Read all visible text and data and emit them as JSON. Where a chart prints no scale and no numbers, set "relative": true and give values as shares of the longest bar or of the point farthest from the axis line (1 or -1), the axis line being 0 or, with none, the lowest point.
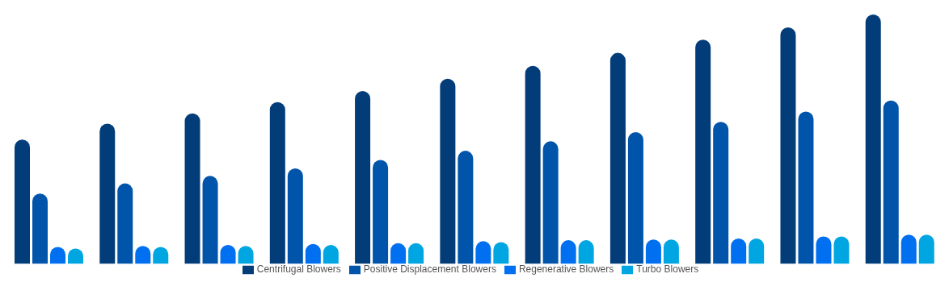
{
  "chart_data": {
    "type": "bar",
    "relative": true,
    "categories": [
      null,
      null,
      null,
      null,
      null,
      null,
      null,
      null,
      null,
      null,
      null
    ],
    "legend": "bottom",
    "series": [
      {
        "name": "Centrifugal Blowers",
        "color": "#023d7a",
        "values": [
          0.498,
          0.562,
          0.603,
          0.648,
          0.693,
          0.742,
          0.794,
          0.846,
          0.899,
          0.948,
          1
        ]
      },
      {
        "name": "Positive Displacement Blowers",
        "color": "#0055aa",
        "values": [
          0.281,
          0.322,
          0.352,
          0.382,
          0.416,
          0.453,
          0.491,
          0.528,
          0.569,
          0.61,
          0.655
        ]
      },
      {
        "name": "Regenerative Blowers",
        "color": "#0070f0",
        "values": [
          0.067,
          0.071,
          0.075,
          0.079,
          0.082,
          0.09,
          0.094,
          0.097,
          0.101,
          0.109,
          0.116
        ]
      },
      {
        "name": "Turbo Blowers",
        "color": "#00a6e2",
        "values": [
          0.06,
          0.067,
          0.071,
          0.075,
          0.082,
          0.086,
          0.094,
          0.097,
          0.101,
          0.109,
          0.116
        ]
      }
    ]
  }
}
